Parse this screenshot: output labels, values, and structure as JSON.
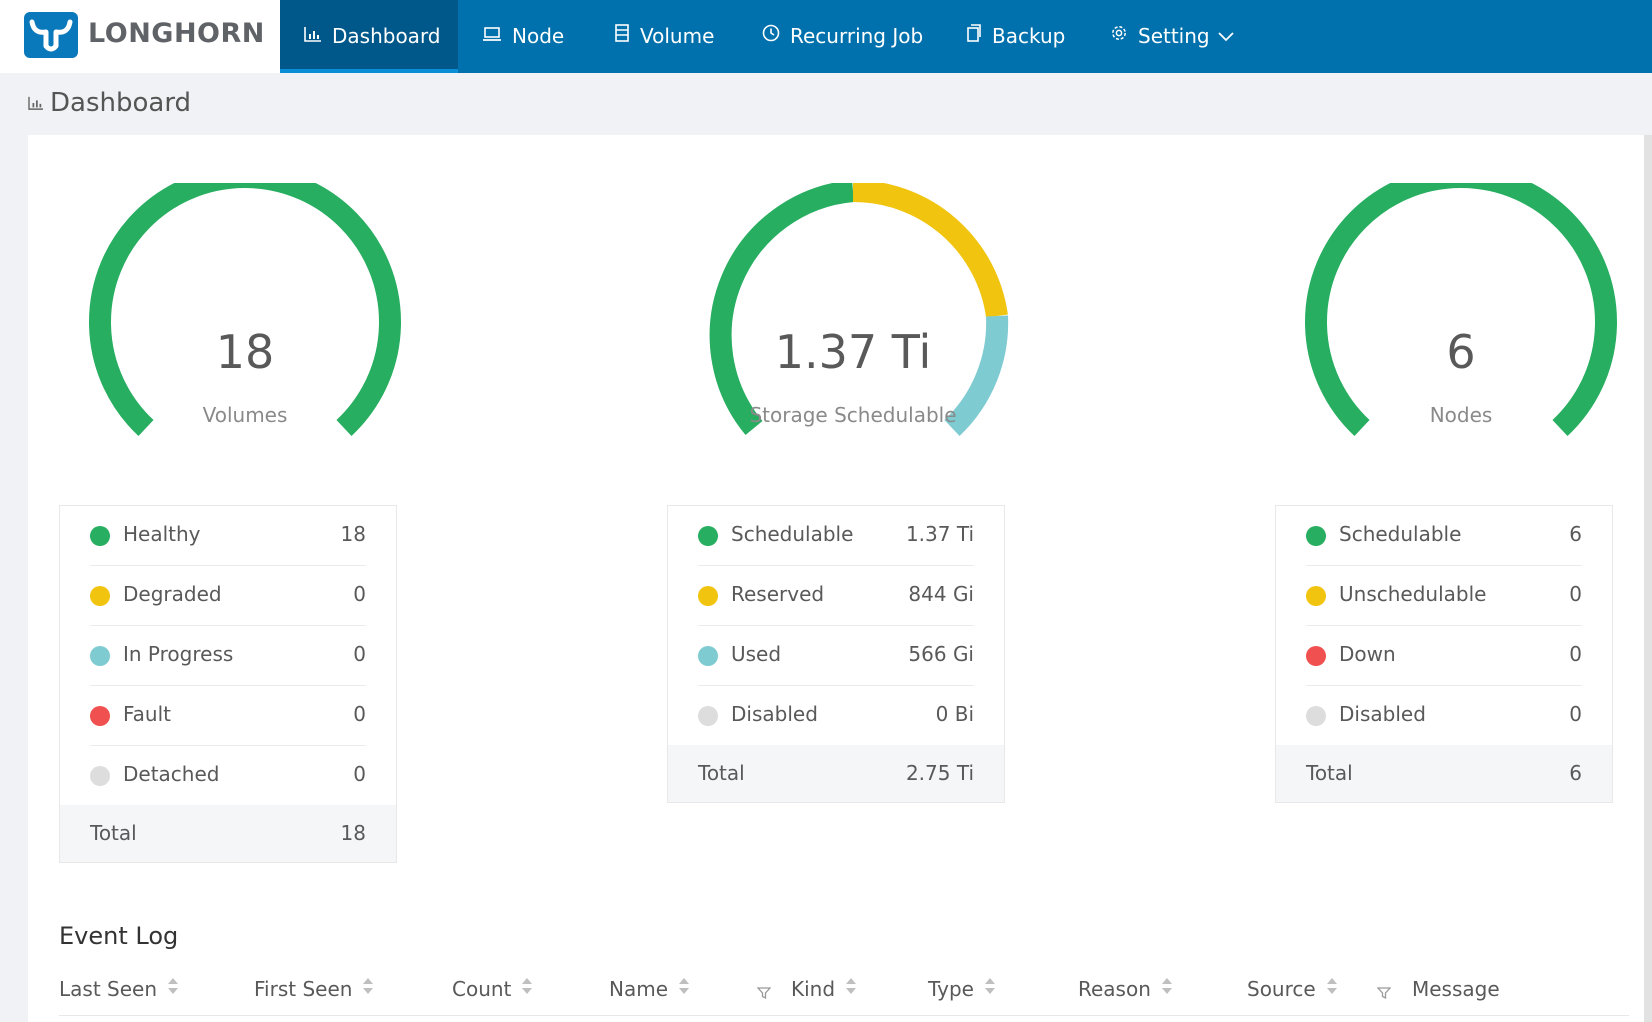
{
  "app": {
    "brand": "LONGHORN"
  },
  "nav": {
    "items": [
      {
        "label": "Dashboard",
        "icon": "bar-chart-icon",
        "active": true
      },
      {
        "label": "Node",
        "icon": "laptop-icon"
      },
      {
        "label": "Volume",
        "icon": "database-icon"
      },
      {
        "label": "Recurring Job",
        "icon": "clock-icon"
      },
      {
        "label": "Backup",
        "icon": "copy-icon"
      },
      {
        "label": "Setting",
        "icon": "gear-icon",
        "dropdown": true
      }
    ]
  },
  "page": {
    "title": "Dashboard",
    "icon": "bar-chart-icon"
  },
  "colors": {
    "green": "#27ae60",
    "yellow": "#f1c40f",
    "teal": "#7ecbd2",
    "red": "#f05050",
    "grey": "#dddddd",
    "nav_bg": "#0071ad"
  },
  "volumes": {
    "value": "18",
    "label": "Volumes",
    "legend": [
      {
        "label": "Healthy",
        "value": "18",
        "color": "#27ae60"
      },
      {
        "label": "Degraded",
        "value": "0",
        "color": "#f1c40f"
      },
      {
        "label": "In Progress",
        "value": "0",
        "color": "#7ecbd2"
      },
      {
        "label": "Fault",
        "value": "0",
        "color": "#f05050"
      },
      {
        "label": "Detached",
        "value": "0",
        "color": "#dddddd"
      }
    ],
    "total_label": "Total",
    "total_value": "18"
  },
  "storage": {
    "value": "1.37 Ti",
    "label": "Storage Schedulable",
    "legend": [
      {
        "label": "Schedulable",
        "value": "1.37 Ti",
        "color": "#27ae60"
      },
      {
        "label": "Reserved",
        "value": "844 Gi",
        "color": "#f1c40f"
      },
      {
        "label": "Used",
        "value": "566 Gi",
        "color": "#7ecbd2"
      },
      {
        "label": "Disabled",
        "value": "0 Bi",
        "color": "#dddddd"
      }
    ],
    "total_label": "Total",
    "total_value": "2.75 Ti"
  },
  "nodes": {
    "value": "6",
    "label": "Nodes",
    "legend": [
      {
        "label": "Schedulable",
        "value": "6",
        "color": "#27ae60"
      },
      {
        "label": "Unschedulable",
        "value": "0",
        "color": "#f1c40f"
      },
      {
        "label": "Down",
        "value": "0",
        "color": "#f05050"
      },
      {
        "label": "Disabled",
        "value": "0",
        "color": "#dddddd"
      }
    ],
    "total_label": "Total",
    "total_value": "6"
  },
  "event_log": {
    "title": "Event Log",
    "columns": [
      "Last Seen",
      "First Seen",
      "Count",
      "Name",
      "Kind",
      "Type",
      "Reason",
      "Source",
      "Message"
    ]
  }
}
